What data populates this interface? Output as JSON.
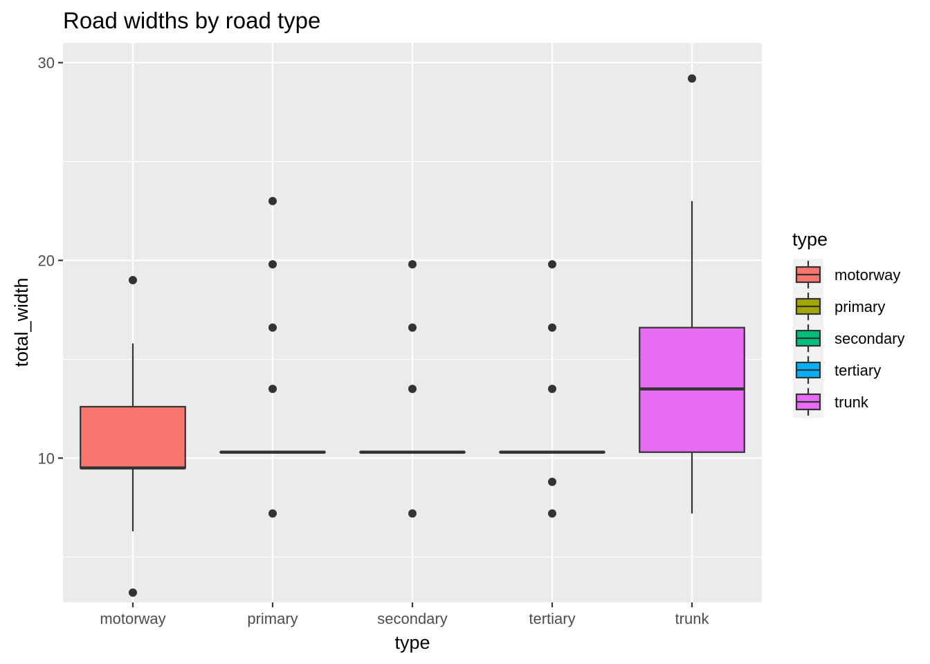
{
  "chart_data": {
    "type": "boxplot",
    "title": "Road widths by road type",
    "xlabel": "type",
    "ylabel": "total_width",
    "categories": [
      "motorway",
      "primary",
      "secondary",
      "tertiary",
      "trunk"
    ],
    "ylim": [
      2.7,
      31.0
    ],
    "yticks": [
      10,
      20,
      30
    ],
    "grid": true,
    "legend": {
      "title": "type",
      "placement": "right",
      "entries": [
        "motorway",
        "primary",
        "secondary",
        "tertiary",
        "trunk"
      ]
    },
    "colors": {
      "motorway": "#F8766D",
      "primary": "#A3A500",
      "secondary": "#00BF7D",
      "tertiary": "#00B0F6",
      "trunk": "#E76BF3",
      "panel": "#EBEBEB",
      "grid": "#FFFFFF",
      "outline": "#333333"
    },
    "boxes": [
      {
        "category": "motorway",
        "lower_whisker": 6.3,
        "q1": 9.5,
        "median": 9.5,
        "q3": 12.6,
        "upper_whisker": 15.8,
        "outliers": [
          19.0,
          3.2
        ]
      },
      {
        "category": "primary",
        "lower_whisker": 10.3,
        "q1": 10.3,
        "median": 10.3,
        "q3": 10.3,
        "upper_whisker": 10.3,
        "outliers": [
          23.0,
          19.8,
          16.6,
          13.5,
          7.2
        ]
      },
      {
        "category": "secondary",
        "lower_whisker": 10.3,
        "q1": 10.3,
        "median": 10.3,
        "q3": 10.3,
        "upper_whisker": 10.3,
        "outliers": [
          19.8,
          16.6,
          13.5,
          7.2
        ]
      },
      {
        "category": "tertiary",
        "lower_whisker": 10.3,
        "q1": 10.3,
        "median": 10.3,
        "q3": 10.3,
        "upper_whisker": 10.3,
        "outliers": [
          19.8,
          16.6,
          13.5,
          8.8,
          7.2
        ]
      },
      {
        "category": "trunk",
        "lower_whisker": 7.2,
        "q1": 10.3,
        "median": 13.5,
        "q3": 16.6,
        "upper_whisker": 23.0,
        "outliers": [
          29.2
        ]
      }
    ]
  }
}
